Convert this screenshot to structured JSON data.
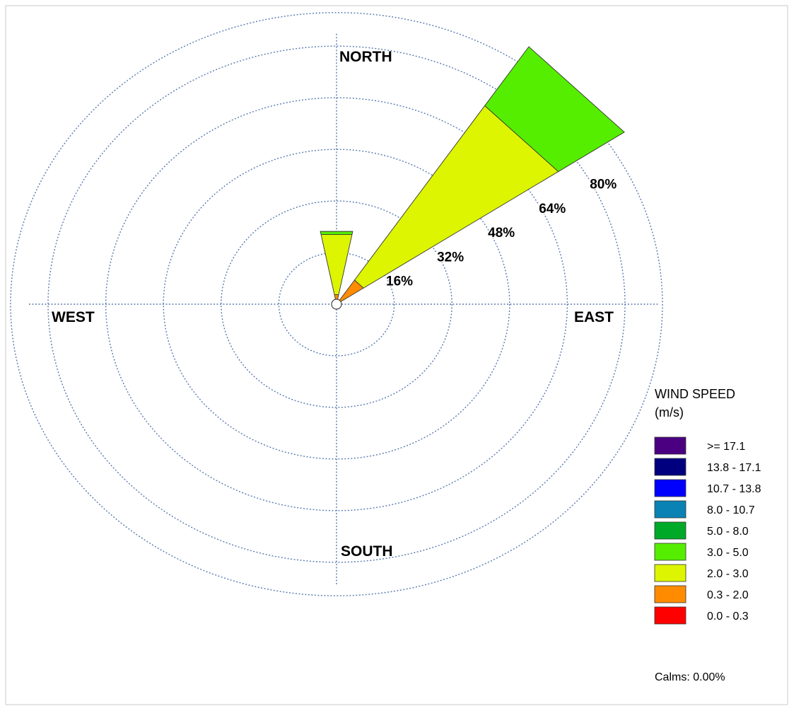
{
  "chart_data": {
    "type": "wind-rose",
    "unit": "%",
    "directions": {
      "north": "NORTH",
      "south": "SOUTH",
      "east": "EAST",
      "west": "WEST"
    },
    "rings": [
      {
        "value": 16,
        "label": "16%"
      },
      {
        "value": 32,
        "label": "32%"
      },
      {
        "value": 48,
        "label": "48%"
      },
      {
        "value": 64,
        "label": "64%"
      },
      {
        "value": 80,
        "label": "80%"
      }
    ],
    "sectors": [
      {
        "direction": "N",
        "direction_deg": 0,
        "half_width_deg": 11.25,
        "bins": [
          {
            "speed_class": "0.3 - 2.0",
            "value": 3
          },
          {
            "speed_class": "2.0 - 3.0",
            "value": 19
          },
          {
            "speed_class": "3.0 - 5.0",
            "value": 1
          }
        ]
      },
      {
        "direction": "NE",
        "direction_deg": 45,
        "half_width_deg": 11.25,
        "bins": [
          {
            "speed_class": "0.3 - 2.0",
            "value": 9
          },
          {
            "speed_class": "2.0 - 3.0",
            "value": 65
          },
          {
            "speed_class": "3.0 - 5.0",
            "value": 22
          }
        ]
      }
    ],
    "legend": {
      "title_line1": "WIND SPEED",
      "title_line2": "(m/s)",
      "items": [
        {
          "label": ">= 17.1",
          "color": "#4b0082"
        },
        {
          "label": "13.8 - 17.1",
          "color": "#00007f"
        },
        {
          "label": "10.7 - 13.8",
          "color": "#0000ff"
        },
        {
          "label": "8.0 - 10.7",
          "color": "#0a82b4"
        },
        {
          "label": "5.0 -  8.0",
          "color": "#00aa28"
        },
        {
          "label": "3.0 -  5.0",
          "color": "#55ee00"
        },
        {
          "label": "2.0 -  3.0",
          "color": "#ddf500"
        },
        {
          "label": "0.3 -  2.0",
          "color": "#ff8c00"
        },
        {
          "label": "0.0 -  0.3",
          "color": "#ff0000"
        }
      ]
    },
    "calms": "Calms: 0.00%",
    "colors": {
      "grid": "#5a7ab0",
      "bin_0.3-2.0": "#ff8c00",
      "bin_2.0-3.0": "#ddf500",
      "bin_3.0-5.0": "#55ee00"
    }
  }
}
